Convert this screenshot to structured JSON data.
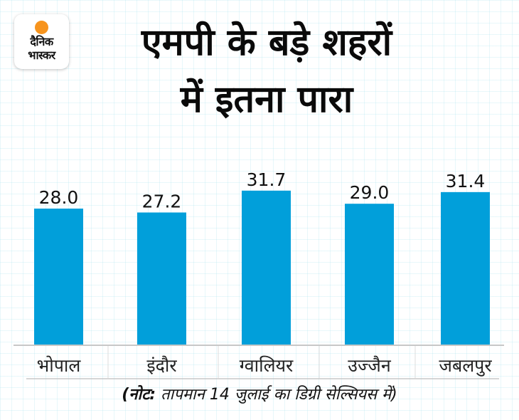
{
  "brand": {
    "logo_line1": "दैनिक",
    "logo_line2": "भास्कर",
    "logo_accent": "#f7941d"
  },
  "header": {
    "title_line1": "एमपी के बड़े शहरों",
    "title_line2": "में इतना पारा"
  },
  "note": {
    "prefix": "(नोट:",
    "text": " तापमान 14 जुलाई का डिग्री सेल्सियस में)"
  },
  "colors": {
    "bar": "#019fda",
    "axis": "#c8c8c8"
  },
  "chart_data": {
    "type": "bar",
    "title": "एमपी के बड़े शहरों में इतना पारा",
    "xlabel": "",
    "ylabel": "",
    "categories": [
      "भोपाल",
      "इंदौर",
      "ग्वालियर",
      "उज्जैन",
      "जबलपुर"
    ],
    "values": [
      28.0,
      27.2,
      31.7,
      29.0,
      31.4
    ],
    "value_labels": [
      "28.0",
      "27.2",
      "31.7",
      "29.0",
      "31.4"
    ],
    "ylim": [
      0,
      35
    ],
    "grid": false,
    "legend": "none"
  }
}
